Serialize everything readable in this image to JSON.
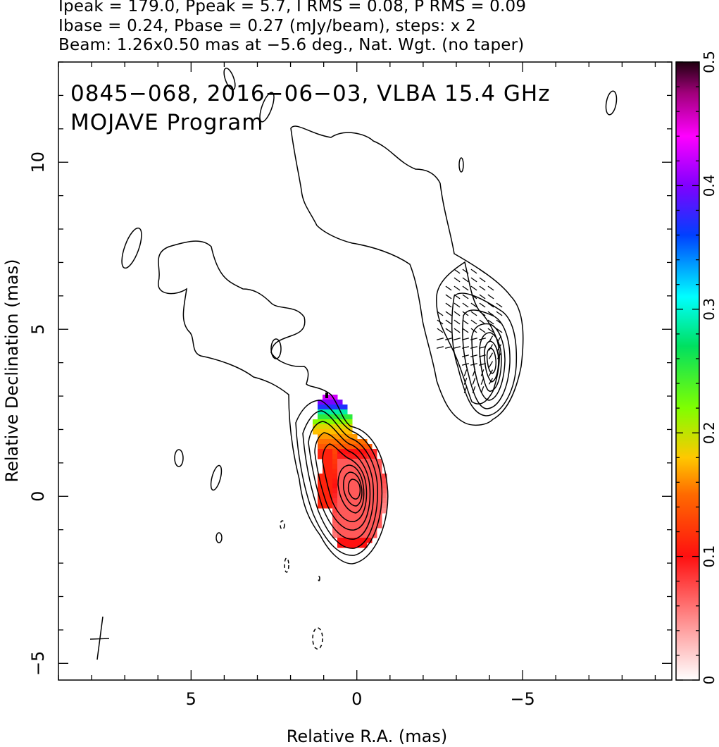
{
  "header": {
    "line1": "Ipeak = 179.0, Ppeak = 5.7, I RMS = 0.08, P RMS = 0.09",
    "line2": "Ibase = 0.24, Pbase = 0.27 (mJy/beam), steps: x 2",
    "line3": "Beam: 1.26x0.50 mas at −5.6 deg., Nat. Wgt. (no taper)"
  },
  "chart_data": {
    "type": "heatmap",
    "title": "0845−068, 2016−06−03, VLBA 15.4 GHz",
    "subtitle": "MOJAVE Program",
    "xlabel": "Relative R.A. (mas)",
    "ylabel": "Relative Declination (mas)",
    "xlim": [
      9,
      -9.5
    ],
    "ylim": [
      -5.5,
      13
    ],
    "x_ticks": [
      5,
      0,
      -5
    ],
    "x_tick_labels": [
      "5",
      "0",
      "−5"
    ],
    "y_ticks": [
      10,
      5,
      0,
      -5
    ],
    "y_tick_labels": [
      "10",
      "5",
      "0",
      "−5"
    ],
    "colorbar": {
      "range": [
        0,
        0.5
      ],
      "ticks": [
        0,
        0.1,
        0.2,
        0.3,
        0.4,
        0.5
      ],
      "tick_labels": [
        "0",
        "0.1",
        "0.2",
        "0.3",
        "0.4",
        "0.5"
      ]
    },
    "stokes_i": {
      "peak": 179.0,
      "rms": 0.08,
      "base": 0.24,
      "units": "mJy/beam",
      "contour_step": 2,
      "core_position": [
        0,
        0
      ],
      "secondary_peak": [
        -4,
        4
      ]
    },
    "polarization": {
      "peak": 5.7,
      "rms": 0.09,
      "base": 0.27,
      "fractional_pol_core": 0.08,
      "fractional_pol_jet_edge": 0.45
    },
    "beam": {
      "major": 1.26,
      "minor": 0.5,
      "pa_deg": -5.6,
      "weighting": "Nat. Wgt. (no taper)"
    }
  }
}
